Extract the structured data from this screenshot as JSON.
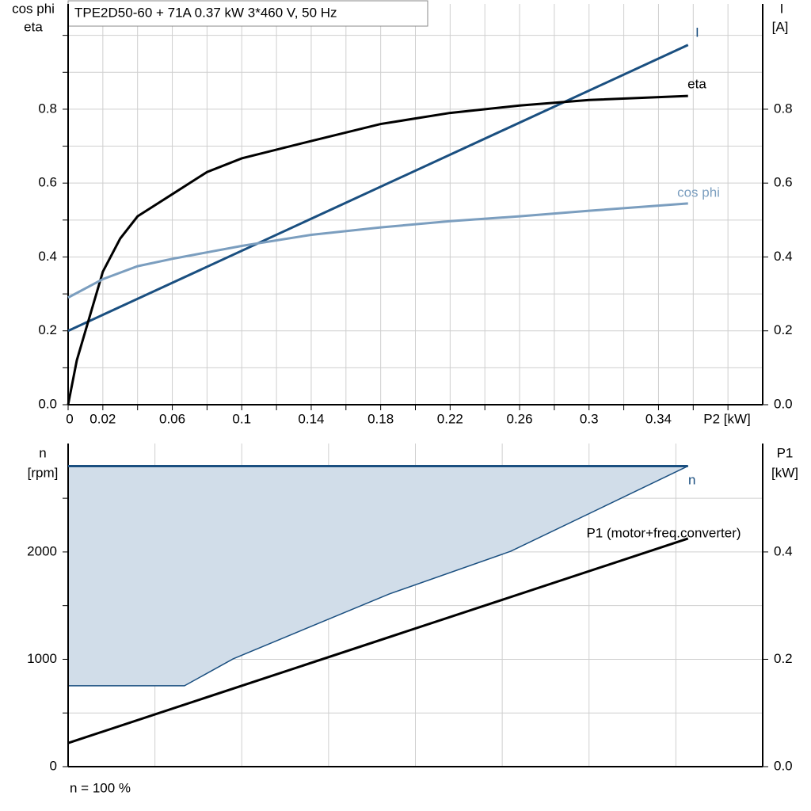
{
  "chart_data": [
    {
      "type": "line",
      "title": "TPE2D50-60 + 71A   0.37 kW   3*460 V, 50 Hz",
      "x_label": "P2 [kW]",
      "y_label": [
        "cos phi",
        "eta"
      ],
      "y2_label": [
        "I",
        "[A]"
      ],
      "xlim": [
        0,
        0.4
      ],
      "xticks": [
        0,
        0.02,
        0.06,
        0.1,
        0.14,
        0.18,
        0.22,
        0.26,
        0.3,
        0.34
      ],
      "xgrid": [
        0.04,
        0.08,
        0.12,
        0.16,
        0.2,
        0.24,
        0.28,
        0.32,
        0.36,
        0.38
      ],
      "ylim": [
        0,
        1.085
      ],
      "yticks": [
        {
          "value": 0,
          "label": "0.0"
        },
        0.2,
        0.4,
        0.6,
        0.8
      ],
      "ygrid": [
        0.1,
        0.3,
        0.5,
        0.7,
        0.9,
        1.0
      ],
      "y2lim": [
        0,
        1.085
      ],
      "y2ticks": [
        {
          "value": 0,
          "label": "0.0"
        },
        0.2,
        0.4,
        0.6,
        0.8
      ],
      "grid": true,
      "series": [
        {
          "name": "I",
          "color": "#1a4f80",
          "axis": "y2",
          "x": [
            0,
            0.357
          ],
          "values": [
            0.2,
            0.974
          ]
        },
        {
          "name": "eta",
          "color": "#000000",
          "x": [
            0,
            0.005,
            0.01,
            0.02,
            0.03,
            0.04,
            0.06,
            0.08,
            0.1,
            0.14,
            0.18,
            0.22,
            0.26,
            0.3,
            0.357
          ],
          "values": [
            0,
            0.12,
            0.2,
            0.36,
            0.45,
            0.51,
            0.57,
            0.63,
            0.667,
            0.714,
            0.76,
            0.79,
            0.81,
            0.825,
            0.836
          ]
        },
        {
          "name": "cos phi",
          "color": "#7b9ebf",
          "x": [
            0,
            0.02,
            0.04,
            0.06,
            0.1,
            0.14,
            0.18,
            0.22,
            0.26,
            0.3,
            0.357
          ],
          "values": [
            0.29,
            0.34,
            0.375,
            0.395,
            0.43,
            0.46,
            0.48,
            0.497,
            0.51,
            0.525,
            0.545
          ]
        }
      ]
    },
    {
      "type": "line",
      "note": "n = 100 %",
      "y_label": [
        "n",
        "[rpm]"
      ],
      "y2_label": [
        "P1",
        "[kW]"
      ],
      "xlim": [
        0,
        0.4
      ],
      "xgrid": [
        0.05,
        0.1,
        0.15,
        0.2,
        0.25,
        0.3,
        0.35
      ],
      "ylim": [
        0,
        3010
      ],
      "yticks": [
        0,
        1000,
        2000
      ],
      "ygrid": [
        500,
        1500,
        2500
      ],
      "y2lim": [
        0,
        0.602
      ],
      "y2ticks": [
        {
          "value": 0,
          "label": "0.0"
        },
        0.2,
        0.4
      ],
      "grid": true,
      "band": {
        "fill": "#d1dde9",
        "edge": "#1a4f80",
        "x": [
          0,
          0.067,
          0.095,
          0.185,
          0.255,
          0.357
        ],
        "values": [
          753,
          753,
          1004,
          1609,
          2007,
          2800
        ]
      },
      "series": [
        {
          "name": "n",
          "color": "#1a4f80",
          "x": [
            0,
            0.357
          ],
          "values": [
            2800,
            2800
          ]
        },
        {
          "name": "P1 (motor+freq.converter)",
          "color": "#000000",
          "axis": "y2",
          "x": [
            0,
            0.357
          ],
          "values": [
            0.044,
            0.425
          ]
        }
      ]
    }
  ]
}
